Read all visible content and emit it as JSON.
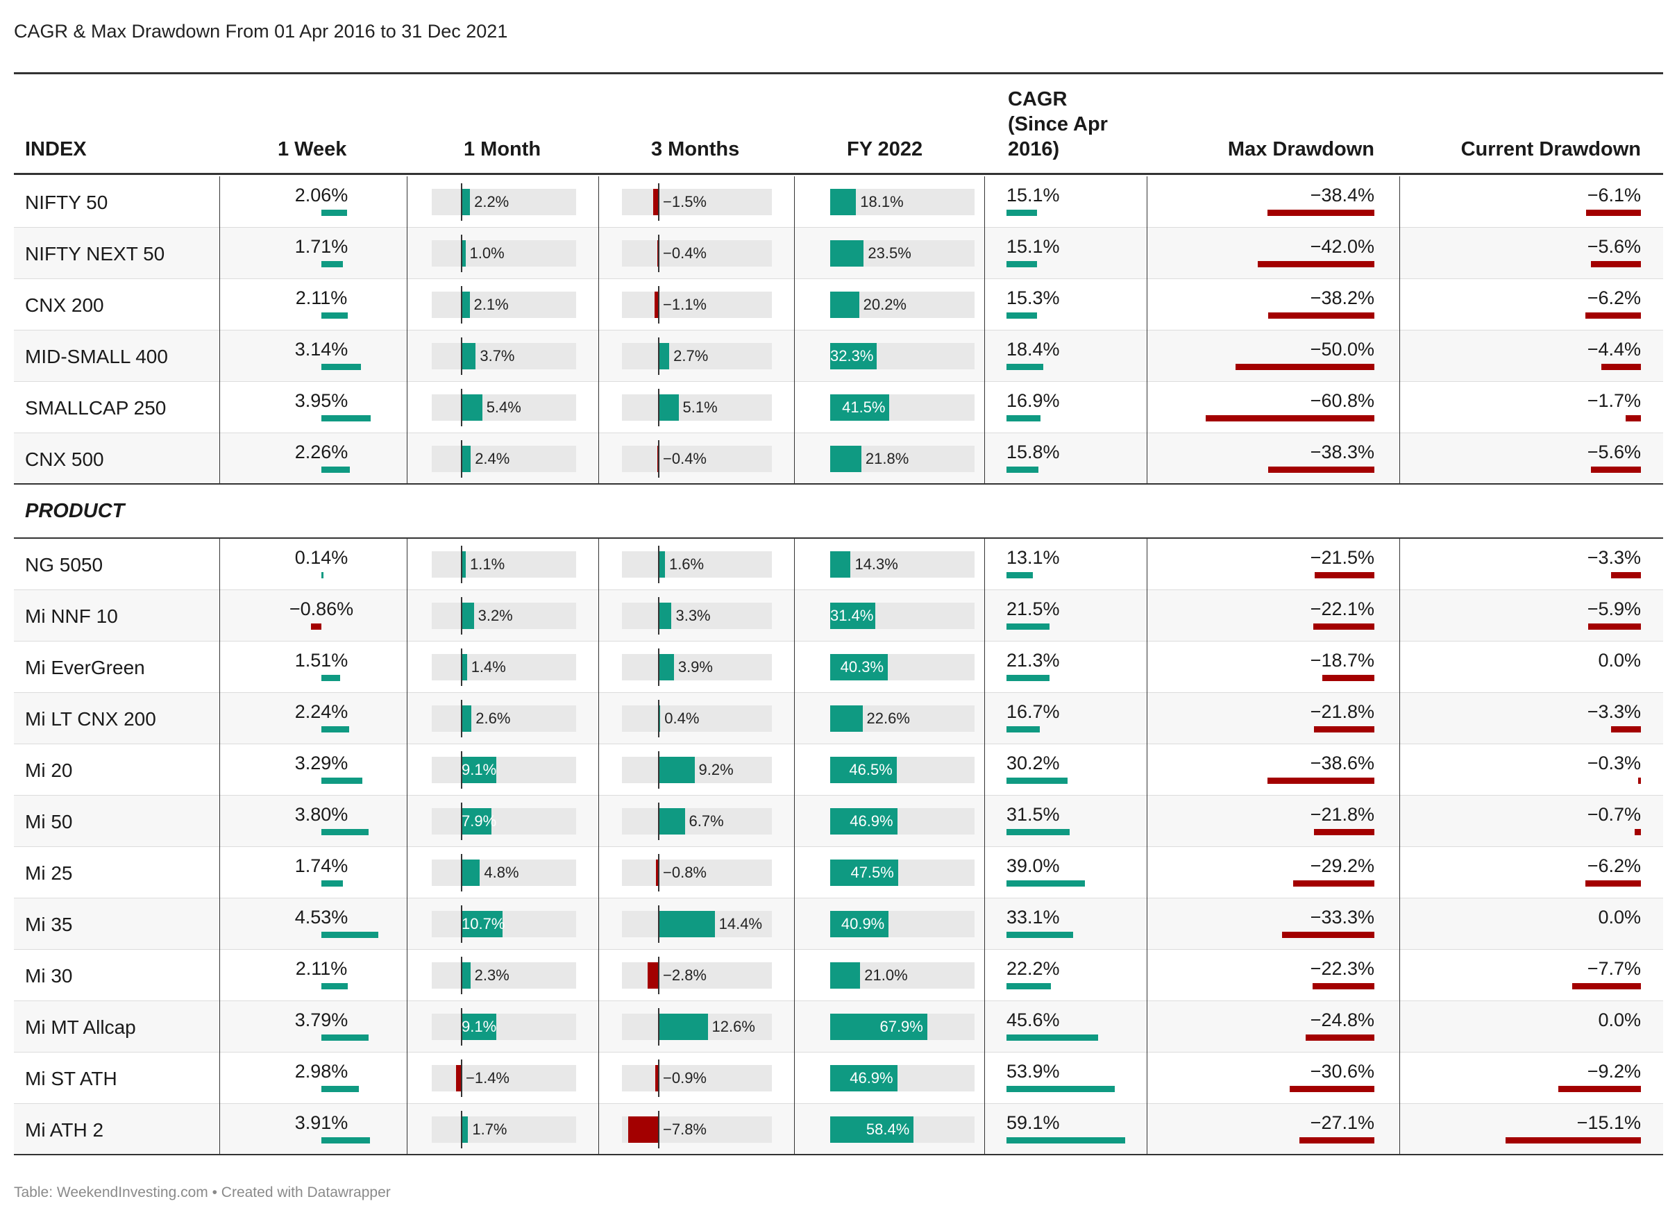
{
  "title": "CAGR & Max Drawdown From 01 Apr 2016 to 31 Dec 2021",
  "footer": "Table: WeekendInvesting.com • Created with Datawrapper",
  "colors": {
    "positive": "#0f9a82",
    "negative": "#a30000",
    "track": "#e8e8e8",
    "rule": "#333333"
  },
  "headers": {
    "index": "INDEX",
    "week": "1 Week",
    "month": "1 Month",
    "months3": "3 Months",
    "fy": "FY 2022",
    "cagr_line1": "CAGR",
    "cagr_line2": "(Since Apr",
    "cagr_line3": "2016)",
    "maxdd": "Max Drawdown",
    "curdd": "Current Drawdown"
  },
  "section_label": "PRODUCT",
  "chart_data": {
    "type": "table",
    "columns": [
      "1 Week",
      "1 Month",
      "3 Months",
      "FY 2022",
      "CAGR (Since Apr 2016)",
      "Max Drawdown",
      "Current Drawdown"
    ],
    "units": "%",
    "index_rows": [
      {
        "name": "NIFTY 50",
        "week": "2.06%",
        "month": "2.2%",
        "m3": "−1.5%",
        "fy": "18.1%",
        "cagr": "15.1%",
        "maxdd": "−38.4%",
        "curdd": "−6.1%"
      },
      {
        "name": "NIFTY NEXT 50",
        "week": "1.71%",
        "month": "1.0%",
        "m3": "−0.4%",
        "fy": "23.5%",
        "cagr": "15.1%",
        "maxdd": "−42.0%",
        "curdd": "−5.6%"
      },
      {
        "name": "CNX 200",
        "week": "2.11%",
        "month": "2.1%",
        "m3": "−1.1%",
        "fy": "20.2%",
        "cagr": "15.3%",
        "maxdd": "−38.2%",
        "curdd": "−6.2%"
      },
      {
        "name": "MID-SMALL 400",
        "week": "3.14%",
        "month": "3.7%",
        "m3": "2.7%",
        "fy": "32.3%",
        "cagr": "18.4%",
        "maxdd": "−50.0%",
        "curdd": "−4.4%"
      },
      {
        "name": "SMALLCAP 250",
        "week": "3.95%",
        "month": "5.4%",
        "m3": "5.1%",
        "fy": "41.5%",
        "cagr": "16.9%",
        "maxdd": "−60.8%",
        "curdd": "−1.7%"
      },
      {
        "name": "CNX 500",
        "week": "2.26%",
        "month": "2.4%",
        "m3": "−0.4%",
        "fy": "21.8%",
        "cagr": "15.8%",
        "maxdd": "−38.3%",
        "curdd": "−5.6%"
      }
    ],
    "product_rows": [
      {
        "name": "NG 5050",
        "week": "0.14%",
        "month": "1.1%",
        "m3": "1.6%",
        "fy": "14.3%",
        "cagr": "13.1%",
        "maxdd": "−21.5%",
        "curdd": "−3.3%"
      },
      {
        "name": "Mi NNF 10",
        "week": "−0.86%",
        "month": "3.2%",
        "m3": "3.3%",
        "fy": "31.4%",
        "cagr": "21.5%",
        "maxdd": "−22.1%",
        "curdd": "−5.9%"
      },
      {
        "name": "Mi EverGreen",
        "week": "1.51%",
        "month": "1.4%",
        "m3": "3.9%",
        "fy": "40.3%",
        "cagr": "21.3%",
        "maxdd": "−18.7%",
        "curdd": "0.0%"
      },
      {
        "name": "Mi LT CNX 200",
        "week": "2.24%",
        "month": "2.6%",
        "m3": "0.4%",
        "fy": "22.6%",
        "cagr": "16.7%",
        "maxdd": "−21.8%",
        "curdd": "−3.3%"
      },
      {
        "name": "Mi 20",
        "week": "3.29%",
        "month": "9.1%",
        "m3": "9.2%",
        "fy": "46.5%",
        "cagr": "30.2%",
        "maxdd": "−38.6%",
        "curdd": "−0.3%"
      },
      {
        "name": "Mi 50",
        "week": "3.80%",
        "month": "7.9%",
        "m3": "6.7%",
        "fy": "46.9%",
        "cagr": "31.5%",
        "maxdd": "−21.8%",
        "curdd": "−0.7%"
      },
      {
        "name": "Mi 25",
        "week": "1.74%",
        "month": "4.8%",
        "m3": "−0.8%",
        "fy": "47.5%",
        "cagr": "39.0%",
        "maxdd": "−29.2%",
        "curdd": "−6.2%"
      },
      {
        "name": "Mi 35",
        "week": "4.53%",
        "month": "10.7%",
        "m3": "14.4%",
        "fy": "40.9%",
        "cagr": "33.1%",
        "maxdd": "−33.3%",
        "curdd": "0.0%"
      },
      {
        "name": "Mi 30",
        "week": "2.11%",
        "month": "2.3%",
        "m3": "−2.8%",
        "fy": "21.0%",
        "cagr": "22.2%",
        "maxdd": "−22.3%",
        "curdd": "−7.7%"
      },
      {
        "name": "Mi MT Allcap",
        "week": "3.79%",
        "month": "9.1%",
        "m3": "12.6%",
        "fy": "67.9%",
        "cagr": "45.6%",
        "maxdd": "−24.8%",
        "curdd": "0.0%"
      },
      {
        "name": "Mi ST ATH",
        "week": "2.98%",
        "month": "−1.4%",
        "m3": "−0.9%",
        "fy": "46.9%",
        "cagr": "53.9%",
        "maxdd": "−30.6%",
        "curdd": "−9.2%"
      },
      {
        "name": "Mi ATH 2",
        "week": "3.91%",
        "month": "1.7%",
        "m3": "−7.8%",
        "fy": "58.4%",
        "cagr": "59.1%",
        "maxdd": "−27.1%",
        "curdd": "−15.1%"
      }
    ]
  }
}
